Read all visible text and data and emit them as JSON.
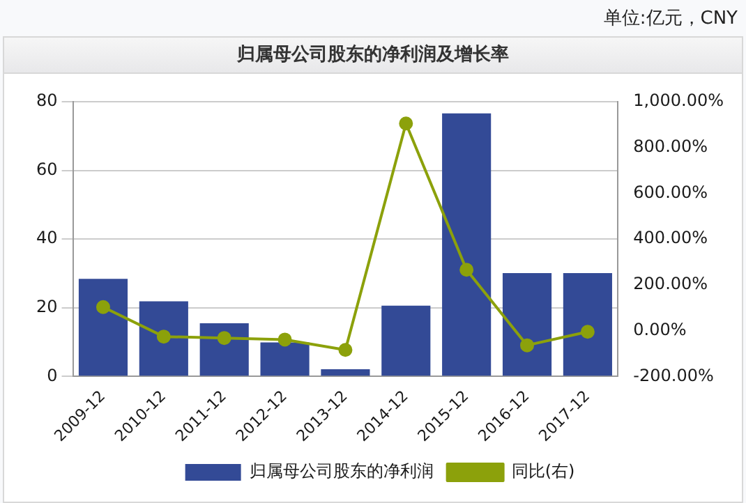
{
  "chart_data": {
    "type": "bar",
    "title": "归属母公司股东的净利润及增长率",
    "annotations": [
      "单位:亿元，CNY"
    ],
    "categories": [
      "2009-12",
      "2010-12",
      "2011-12",
      "2012-12",
      "2013-12",
      "2014-12",
      "2015-12",
      "2016-12",
      "2017-12"
    ],
    "series": [
      {
        "name": "归属母公司股东的净利润",
        "color": "#334a96",
        "values": [
          28.4,
          21.9,
          15.5,
          9.9,
          2.1,
          20.6,
          76.6,
          30.1,
          30.1
        ]
      },
      {
        "name": "同比(右)",
        "type": "line",
        "axis": "y2",
        "color": "#8ca10b",
        "marker": "circle",
        "values": [
          103,
          -26,
          -32,
          -39,
          -84,
          905,
          266,
          -64,
          -5
        ]
      }
    ],
    "ylim": [
      0,
      80
    ],
    "yticks": [
      0,
      20,
      40,
      60,
      80
    ],
    "y2lim": [
      -200,
      1000
    ],
    "y2ticks": [
      {
        "value": -200,
        "label": "-200.00%"
      },
      {
        "value": 0,
        "label": "0.00%"
      },
      {
        "value": 200,
        "label": "200.00%"
      },
      {
        "value": 400,
        "label": "400.00%"
      },
      {
        "value": 600,
        "label": "600.00%"
      },
      {
        "value": 800,
        "label": "800.00%"
      },
      {
        "value": 1000,
        "label": "1,000.00%"
      }
    ],
    "grid": "y",
    "legend": "bottom"
  }
}
